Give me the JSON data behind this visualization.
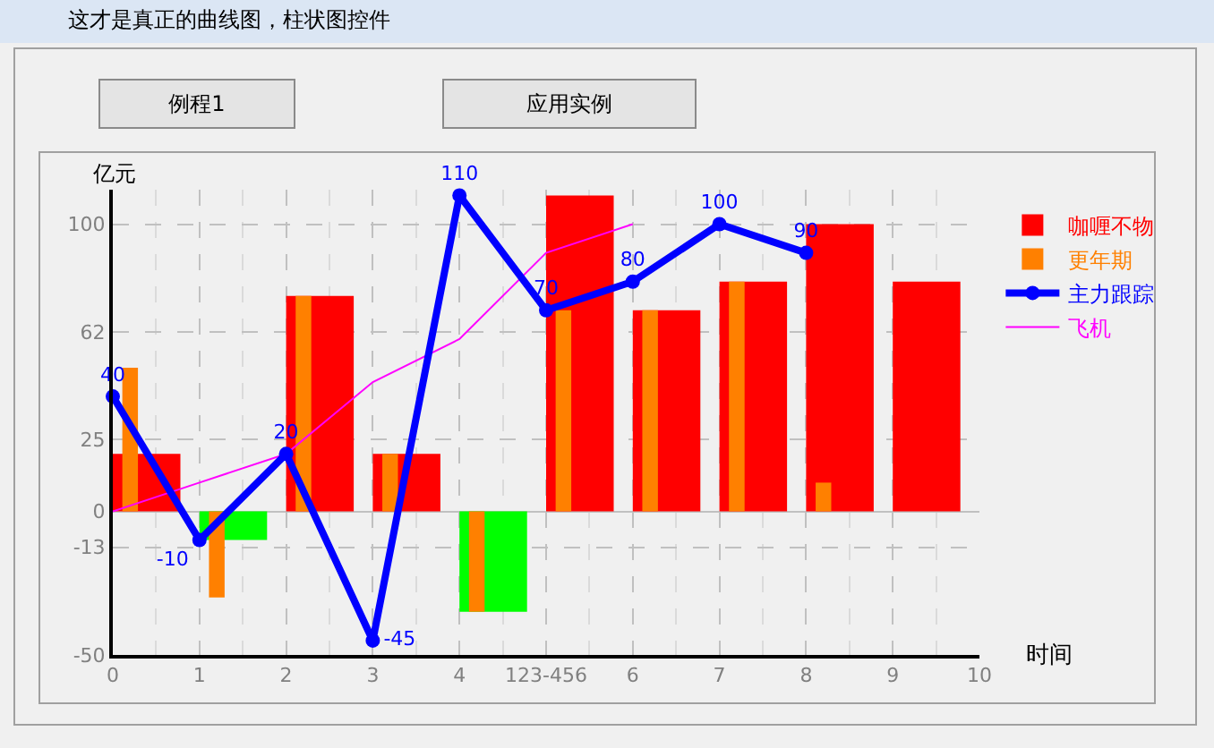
{
  "chart_data": {
    "type": "bar",
    "title": "这才是真正的曲线图，柱状图控件",
    "xlabel": "时间",
    "ylabel": "亿元",
    "annotations": [
      "例程1",
      "应用实例"
    ],
    "x": [
      0,
      1,
      2,
      3,
      4,
      5,
      6,
      7,
      8,
      9
    ],
    "series": [
      {
        "name": "咖喱不物",
        "colors": [
          "#ff0000",
          "#00ff00",
          "#ff0000",
          "#ff0000",
          "#00ff00",
          "#ff0000",
          "#ff0000",
          "#ff0000",
          "#ff0000",
          "#ff0000"
        ],
        "values": [
          20,
          -10,
          75,
          20,
          -35,
          110,
          70,
          80,
          100,
          80
        ]
      },
      {
        "name": "更年期",
        "color": "#ff8000",
        "values": [
          50,
          -30,
          75,
          20,
          -35,
          70,
          70,
          80,
          10,
          null
        ]
      },
      {
        "name": "主力跟踪",
        "type": "line",
        "color": "#0000ff",
        "marker": "circle",
        "data_labels": true,
        "x": [
          0,
          1,
          2,
          3,
          4,
          5,
          6,
          7,
          8
        ],
        "values": [
          40,
          -10,
          20,
          -45,
          110,
          70,
          80,
          100,
          90
        ]
      },
      {
        "name": "飞机",
        "type": "line",
        "color": "#ff00ff",
        "x": [
          0,
          1,
          2,
          3,
          4,
          5,
          6
        ],
        "values": [
          0,
          10,
          20,
          45,
          60,
          90,
          100
        ]
      }
    ],
    "xlim": [
      0,
      10
    ],
    "xticks": [
      0,
      {
        "value": 0.5,
        "label": null
      },
      1,
      {
        "value": 1.5,
        "label": null
      },
      2,
      {
        "value": 2.5,
        "label": null
      },
      3,
      {
        "value": 3.5,
        "label": null
      },
      4,
      {
        "value": 4.5,
        "label": null
      },
      {
        "value": 5,
        "label": "123-456"
      },
      {
        "value": 5.5,
        "label": null
      },
      6,
      {
        "value": 6.5,
        "label": null
      },
      7,
      {
        "value": 7.5,
        "label": null
      },
      8,
      {
        "value": 8.5,
        "label": null
      },
      9,
      {
        "value": 9.5,
        "label": null
      },
      10
    ],
    "ylim": [
      -50,
      112
    ],
    "yticks": [
      -50,
      {
        "value": -12.5,
        "label": "-13"
      },
      0,
      25,
      {
        "value": 62.5,
        "label": "62"
      },
      100
    ],
    "grid": true,
    "legend": "top right"
  }
}
